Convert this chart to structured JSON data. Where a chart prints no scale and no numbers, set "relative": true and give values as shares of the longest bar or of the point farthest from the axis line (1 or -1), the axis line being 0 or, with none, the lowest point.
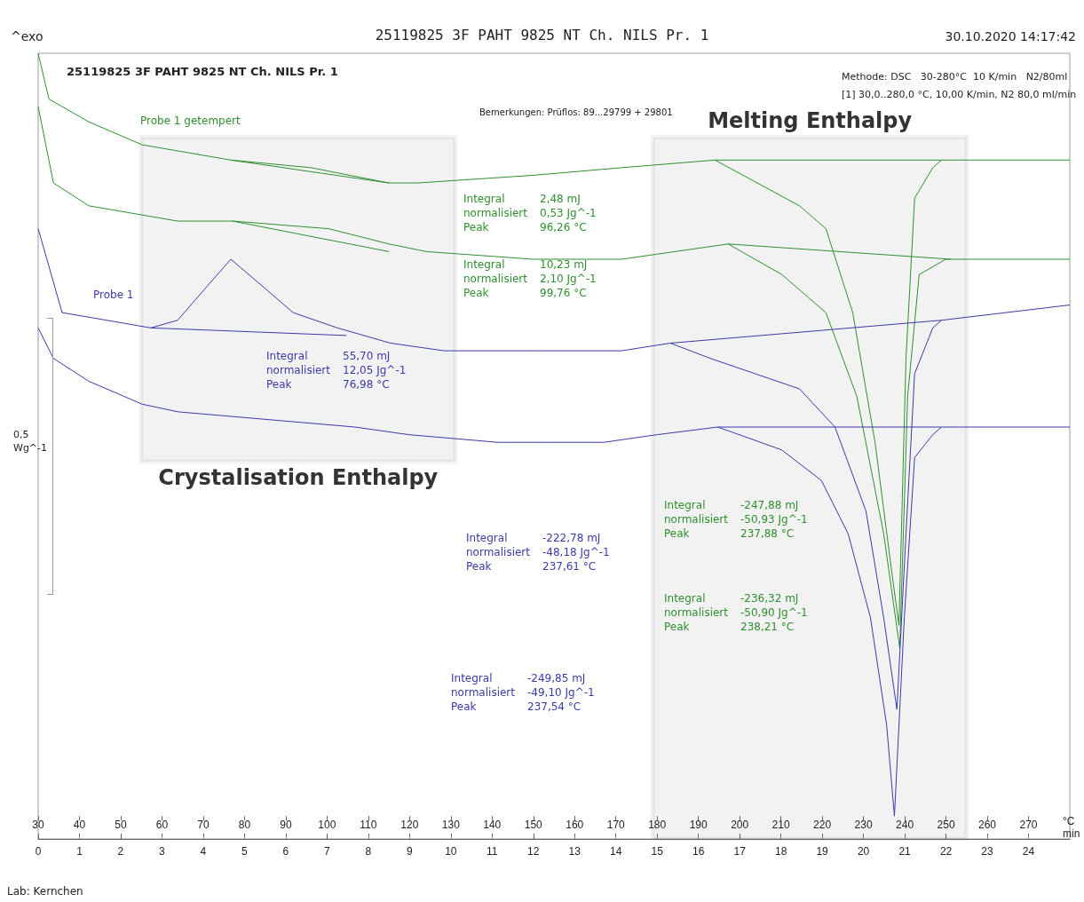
{
  "chart_data": {
    "type": "line",
    "title": "25119825 3F PAHT 9825 NT Ch. NILS Pr. 1",
    "xlabel": "°C",
    "x2label": "min",
    "relative": true,
    "xlim": [
      30,
      280
    ],
    "xticks": [
      30,
      40,
      50,
      60,
      70,
      80,
      90,
      100,
      110,
      120,
      130,
      140,
      150,
      160,
      170,
      180,
      190,
      200,
      210,
      220,
      230,
      240,
      250,
      260,
      270
    ],
    "x2lim": [
      0,
      25
    ],
    "x2ticks": [
      0,
      1,
      2,
      3,
      4,
      5,
      6,
      7,
      8,
      9,
      10,
      11,
      12,
      13,
      14,
      15,
      16,
      17,
      18,
      19,
      20,
      21,
      22,
      23,
      24
    ],
    "series": [
      {
        "color": "#2f8f2f",
        "x": [
          30,
          32.6,
          42.3,
          55.2,
          76.7,
          96.1,
          115.0,
          121.9,
          149.9,
          171.4,
          194.0,
          214.5,
          220.9,
          227.4,
          232.8,
          237.1,
          238.6,
          240.3,
          242.4,
          246.8,
          248.9,
          280
        ],
        "values": [
          1.0,
          0.94,
          0.91,
          0.88,
          0.86,
          0.85,
          0.83,
          0.83,
          0.84,
          0.85,
          0.86,
          0.8,
          0.77,
          0.66,
          0.49,
          0.31,
          0.25,
          0.6,
          0.81,
          0.85,
          0.86,
          0.86
        ]
      },
      {
        "color": "#2f8f2f",
        "x": [
          30,
          33.7,
          42.3,
          63.8,
          77.1,
          100.4,
          115.0,
          124.1,
          149.9,
          171.4,
          184.3,
          197.2,
          210.2,
          220.9,
          228.4,
          234.9,
          238.8,
          240.7,
          243.5,
          250.0,
          280
        ],
        "values": [
          0.93,
          0.83,
          0.8,
          0.78,
          0.78,
          0.77,
          0.75,
          0.74,
          0.73,
          0.73,
          0.74,
          0.75,
          0.71,
          0.66,
          0.55,
          0.37,
          0.22,
          0.55,
          0.71,
          0.73,
          0.73
        ]
      },
      {
        "color": "#3a3aaa",
        "x": [
          30,
          35.8,
          46.6,
          57.3,
          63.8,
          70.2,
          76.7,
          83.2,
          91.8,
          102.5,
          115.4,
          128.4,
          149.9,
          171.4,
          183.2,
          192.9,
          203.7,
          214.5,
          223.1,
          230.6,
          234.9,
          238.1,
          240.3,
          242.4,
          246.8,
          248.9,
          280
        ],
        "values": [
          0.77,
          0.66,
          0.65,
          0.64,
          0.65,
          0.69,
          0.73,
          0.7,
          0.66,
          0.64,
          0.62,
          0.61,
          0.61,
          0.61,
          0.62,
          0.6,
          0.58,
          0.56,
          0.51,
          0.4,
          0.26,
          0.14,
          0.37,
          0.58,
          0.64,
          0.65,
          0.67
        ]
      },
      {
        "color": "#3a3aaa",
        "x": [
          30,
          33.7,
          42.3,
          55.2,
          63.8,
          85.3,
          106.8,
          119.8,
          141.3,
          154.2,
          167.1,
          180.0,
          194.7,
          210.2,
          219.8,
          226.3,
          231.7,
          235.6,
          237.5,
          239.9,
          242.4,
          246.8,
          248.9,
          280
        ],
        "values": [
          0.64,
          0.6,
          0.57,
          0.54,
          0.53,
          0.52,
          0.51,
          0.5,
          0.49,
          0.49,
          0.49,
          0.5,
          0.51,
          0.48,
          0.44,
          0.37,
          0.26,
          0.12,
          0.0,
          0.26,
          0.47,
          0.5,
          0.51,
          0.51
        ]
      },
      {
        "color": "#2f8f2f",
        "x": [
          76.7,
          115.0
        ],
        "values": [
          0.86,
          0.83
        ]
      },
      {
        "color": "#2f8f2f",
        "x": [
          77.1,
          115.0
        ],
        "values": [
          0.78,
          0.74
        ]
      },
      {
        "color": "#3a3aaa",
        "x": [
          57.3,
          104.7
        ],
        "values": [
          0.64,
          0.63
        ]
      },
      {
        "color": "#2f8f2f",
        "x": [
          194.0,
          248.9
        ],
        "values": [
          0.86,
          0.86
        ]
      },
      {
        "color": "#2f8f2f",
        "x": [
          197.2,
          251.1
        ],
        "values": [
          0.75,
          0.73
        ]
      },
      {
        "color": "#3a3aaa",
        "x": [
          183.2,
          248.9
        ],
        "values": [
          0.62,
          0.65
        ]
      },
      {
        "color": "#3a3aaa",
        "x": [
          194.7,
          248.9
        ],
        "values": [
          0.51,
          0.51
        ]
      }
    ],
    "bands": [
      {
        "axis": "x",
        "from": 55,
        "to": 131,
        "label": "Crystalisation Enthalpy",
        "color": "#1a1a1a"
      },
      {
        "axis": "x",
        "from": 179,
        "to": 255,
        "label": "Melting Enthalpy",
        "color": "#1a1a1a"
      }
    ],
    "annotations": [
      "^exo",
      "30.10.2020 14:17:42",
      "Methode: DSC   30-280°C  10 K/min   N2/80ml",
      "[1] 30,0..280,0 °C, 10,00 K/min, N2 80,0 ml/min",
      "Bemerkungen: Prüflos: 89...29799 + 29801",
      "Probe 1 getempert",
      "Probe 1",
      "Integral\t2,48 mJ\nnormalisiert\t0,53 Jg^-1\nPeak\t96,26 °C",
      "Integral\t10,23 mJ\nnormalisiert\t2,10 Jg^-1\nPeak\t99,76 °C",
      "Integral\t55,70 mJ\nnormalisiert\t12,05 Jg^-1\nPeak\t76,98 °C",
      "Integral\t-222,78 mJ\nnormalisiert\t-48,18 Jg^-1\nPeak\t237,61 °C",
      "Integral\t-247,88 mJ\nnormalisiert\t-50,93 Jg^-1\nPeak\t237,88 °C",
      "Integral\t-236,32 mJ\nnormalisiert\t-50,90 Jg^-1\nPeak\t238,21 °C",
      "Integral\t-249,85 mJ\nnormalisiert\t-49,10 Jg^-1\nPeak\t237,54 °C",
      "0,5\nWg^-1",
      "Lab: Kernchen",
      "25119825 3F PAHT 9825 NT Ch. NILS Pr. 1"
    ]
  }
}
